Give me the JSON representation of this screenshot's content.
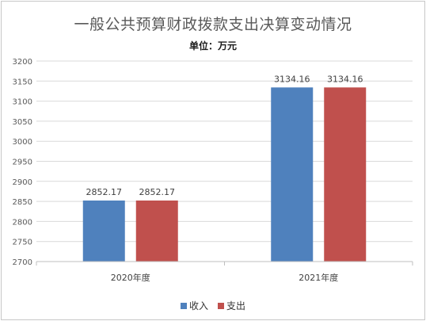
{
  "chart_data": {
    "type": "bar",
    "title": "一般公共预算财政拨款支出决算变动情况",
    "subtitle": "单位：万元",
    "categories": [
      "2020年度",
      "2021年度"
    ],
    "series": [
      {
        "name": "收入",
        "color": "#4f81bd",
        "values": [
          2852.17,
          3134.16
        ],
        "labels": [
          "2852.17",
          "3134.16"
        ]
      },
      {
        "name": "支出",
        "color": "#c0504d",
        "values": [
          2852.17,
          3134.16
        ],
        "labels": [
          "2852.17",
          "3134.16"
        ]
      }
    ],
    "ylim": [
      2700,
      3200
    ],
    "yticks": [
      "2700",
      "2750",
      "2800",
      "2850",
      "2900",
      "2950",
      "3000",
      "3050",
      "3100",
      "3150",
      "3200"
    ],
    "grid": true,
    "legend": "bottom"
  }
}
